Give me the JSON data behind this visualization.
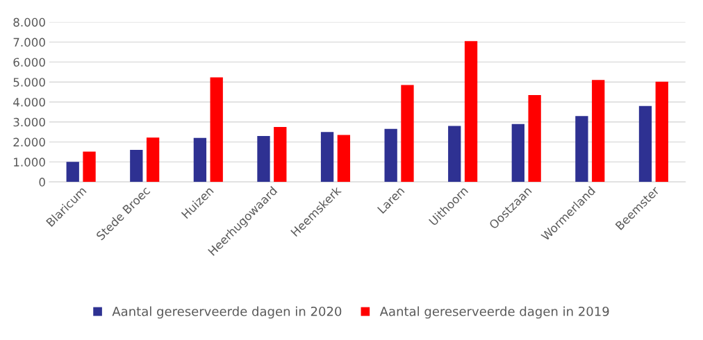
{
  "chart_data": {
    "type": "bar",
    "categories": [
      "Blaricum",
      "Stede Broec",
      "Huizen",
      "Heerhugowaard",
      "Heemskerk",
      "Laren",
      "Uithoorn",
      "Oostzaan",
      "Wormerland",
      "Beemster"
    ],
    "series": [
      {
        "name": "Aantal gereserveerde dagen in 2020",
        "color": "#2e3192",
        "values": [
          1000,
          1600,
          2200,
          2300,
          2500,
          2650,
          2800,
          2900,
          3300,
          3800
        ]
      },
      {
        "name": "Aantal gereserveerde dagen in 2019",
        "color": "#ff0000",
        "values": [
          1520,
          2220,
          5230,
          2750,
          2350,
          4850,
          7050,
          4350,
          5100,
          5020
        ]
      }
    ],
    "ylim": [
      0,
      8000
    ],
    "yticks": [
      0,
      {
        "value": 1000,
        "label": "1.000"
      },
      {
        "value": 2000,
        "label": "2.000"
      },
      {
        "value": 3000,
        "label": "3.000"
      },
      {
        "value": 4000,
        "label": "4.000"
      },
      {
        "value": 5000,
        "label": "5.000"
      },
      {
        "value": 6000,
        "label": "6.000"
      },
      {
        "value": 7000,
        "label": "7.000"
      },
      {
        "value": 8000,
        "label": "8.000"
      }
    ],
    "grid": "y",
    "legend": "bottom"
  }
}
